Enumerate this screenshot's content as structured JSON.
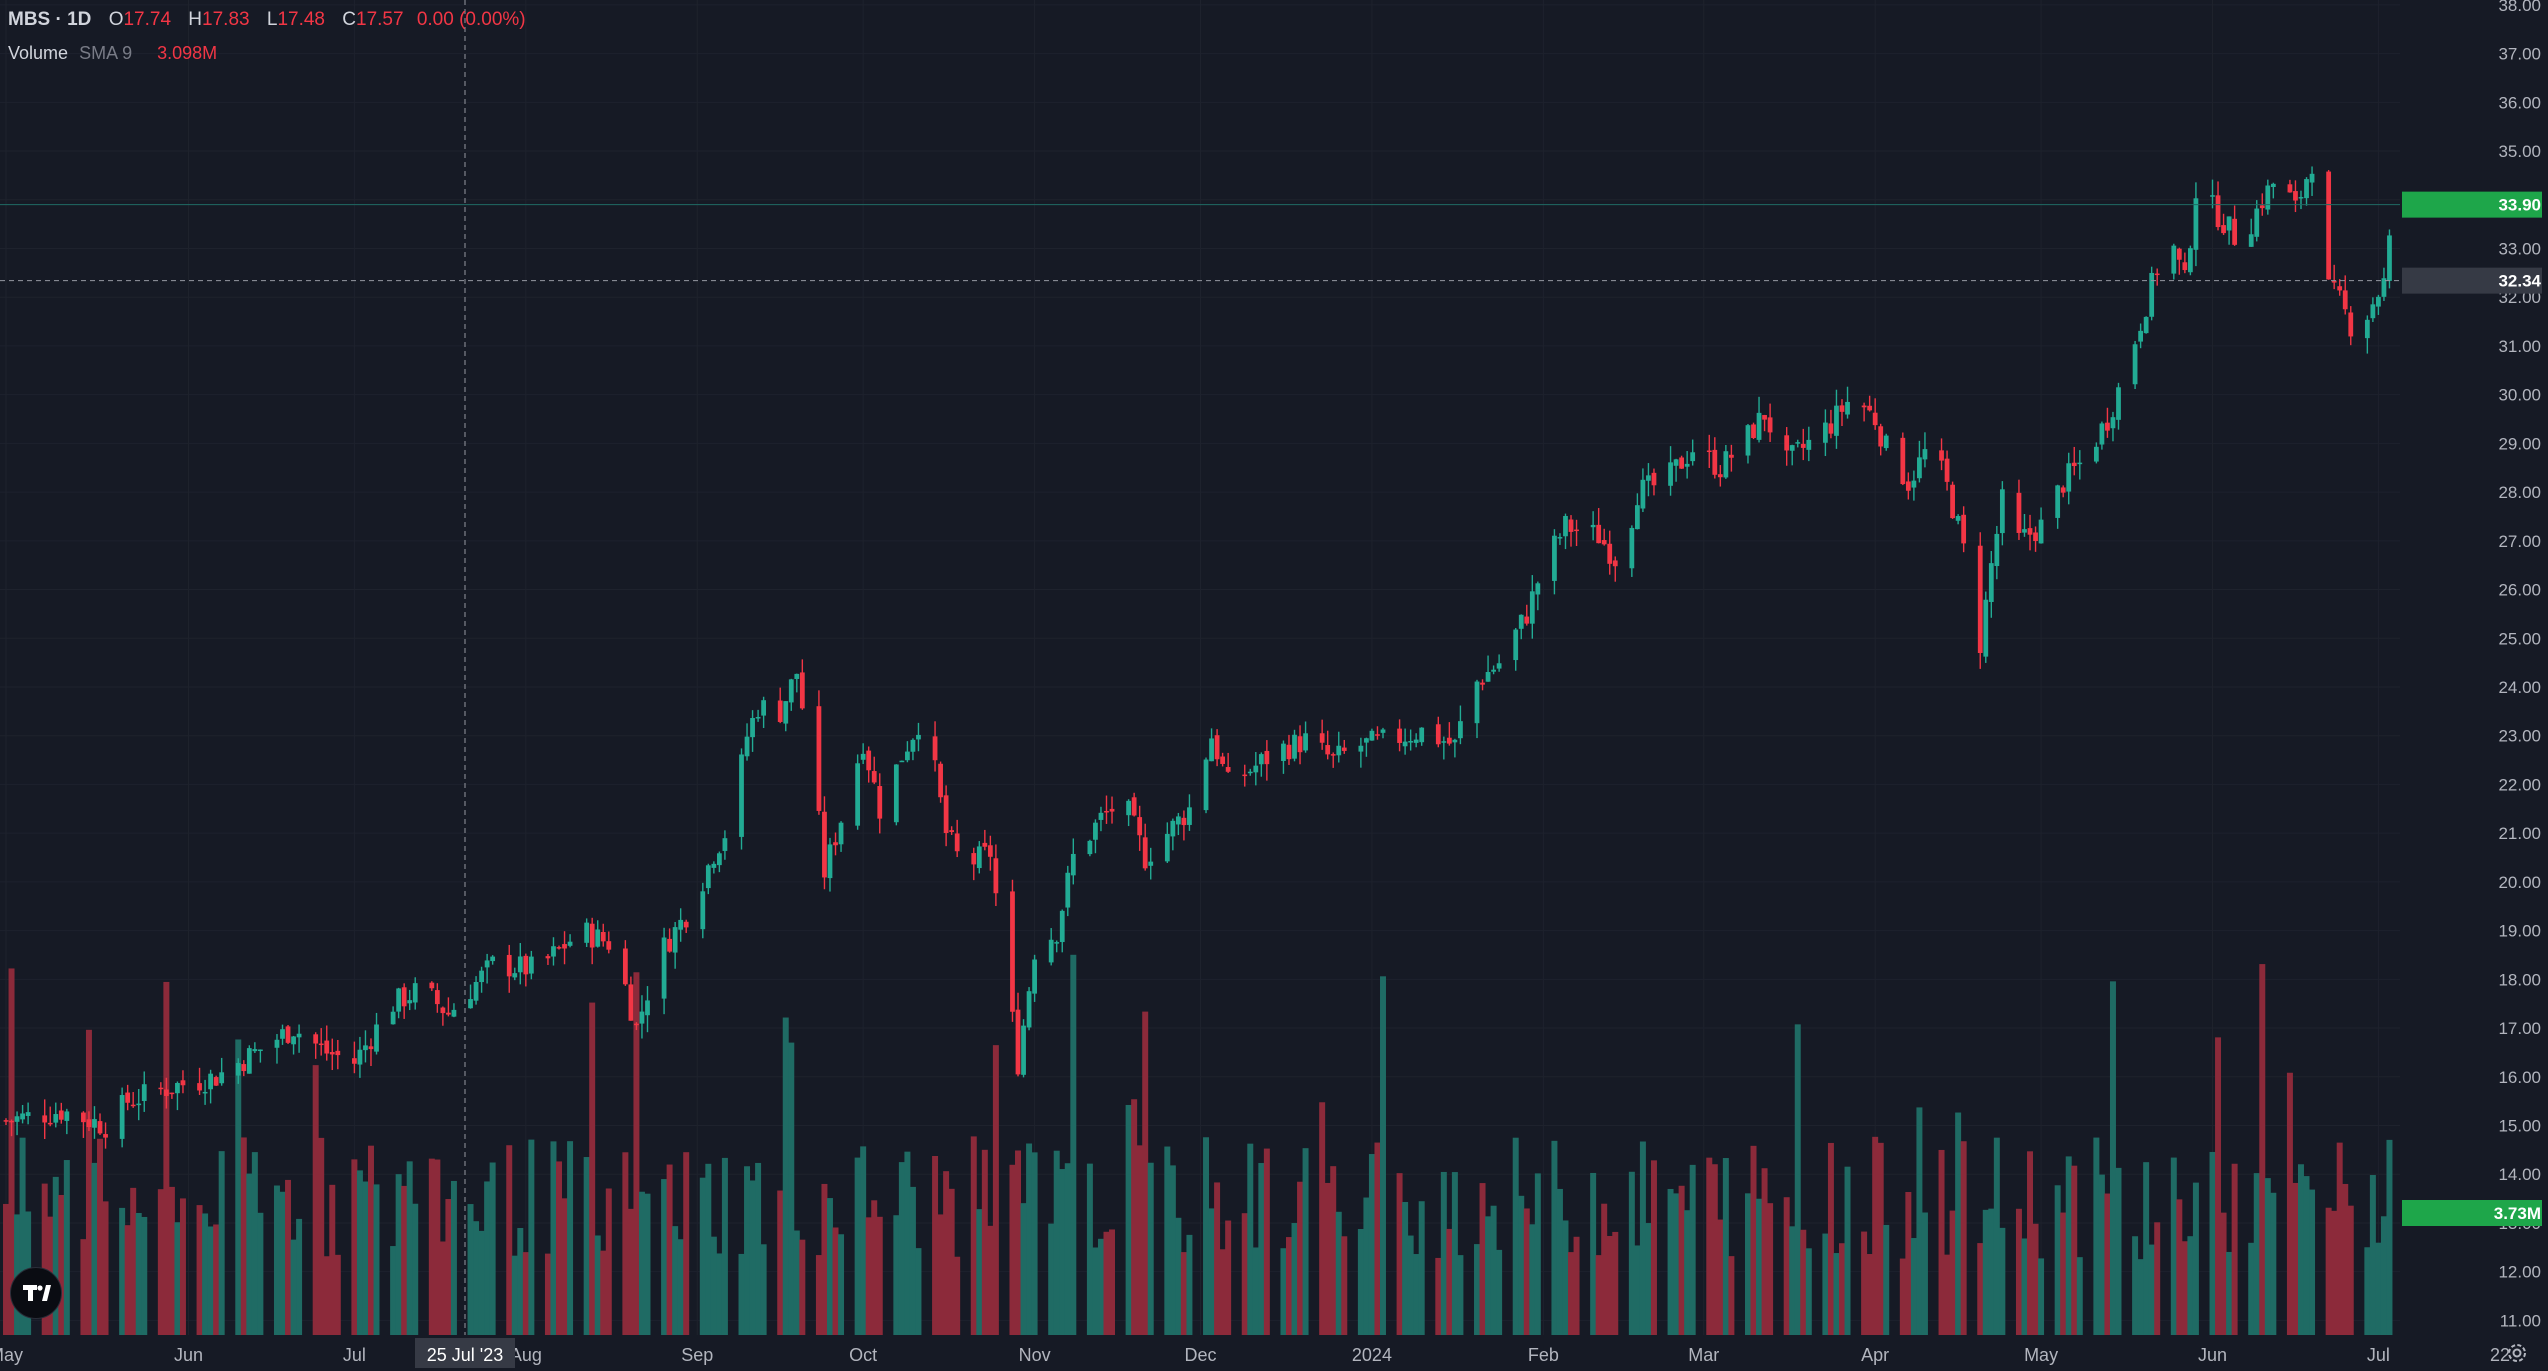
{
  "header": {
    "symbol": "MBS · 1D",
    "o_label": "O",
    "o_value": "17.74",
    "h_label": "H",
    "h_value": "17.83",
    "l_label": "L",
    "l_value": "17.48",
    "c_label": "C",
    "c_value": "17.57",
    "change": "0.00 (0.00%)"
  },
  "volume_legend": {
    "name": "Volume",
    "sma": "SMA 9",
    "value": "3.098M"
  },
  "colors": {
    "background": "#161a25",
    "up": "#22ab94",
    "down": "#f23645",
    "vol_up": "#1f6b64",
    "vol_down": "#8c2a3a",
    "grid": "#1e222d",
    "text": "#d1d4dc"
  },
  "chart_data": {
    "type": "candlestick",
    "symbol": "MBS",
    "interval": "1D",
    "price_axis": {
      "range": [
        10.7,
        38.1
      ],
      "ticks": [
        "11.00",
        "12.00",
        "13.00",
        "14.00",
        "15.00",
        "16.00",
        "17.00",
        "18.00",
        "19.00",
        "20.00",
        "21.00",
        "22.00",
        "23.00",
        "24.00",
        "25.00",
        "26.00",
        "27.00",
        "28.00",
        "29.00",
        "30.00",
        "31.00",
        "32.00",
        "33.00",
        "34.00",
        "35.00",
        "36.00",
        "37.00",
        "38.00"
      ]
    },
    "time_axis": {
      "labels": [
        {
          "text": "May",
          "day": 0
        },
        {
          "text": "Jun",
          "day": 33
        },
        {
          "text": "Jul",
          "day": 63
        },
        {
          "text": "Aug",
          "day": 94
        },
        {
          "text": "Sep",
          "day": 125
        },
        {
          "text": "Oct",
          "day": 155
        },
        {
          "text": "Nov",
          "day": 186
        },
        {
          "text": "Dec",
          "day": 216
        },
        {
          "text": "2024",
          "day": 247
        },
        {
          "text": "Feb",
          "day": 278
        },
        {
          "text": "Mar",
          "day": 307
        },
        {
          "text": "Apr",
          "day": 338
        },
        {
          "text": "May",
          "day": 368
        },
        {
          "text": "Jun",
          "day": 399
        },
        {
          "text": "Jul",
          "day": 429
        },
        {
          "text": "22",
          "day": 451
        }
      ],
      "first_candle_day": 0,
      "last_candle_day": 432
    },
    "anchors": [
      [
        0,
        15.1
      ],
      [
        10,
        15.3
      ],
      [
        18,
        15.0
      ],
      [
        22,
        15.5
      ],
      [
        30,
        15.8
      ],
      [
        38,
        16.0
      ],
      [
        45,
        16.5
      ],
      [
        52,
        17.0
      ],
      [
        58,
        16.5
      ],
      [
        63,
        16.3
      ],
      [
        70,
        17.5
      ],
      [
        75,
        17.8
      ],
      [
        80,
        17.3
      ],
      [
        88,
        18.3
      ],
      [
        96,
        18.2
      ],
      [
        104,
        19.0
      ],
      [
        110,
        18.7
      ],
      [
        114,
        17.0
      ],
      [
        118,
        18.5
      ],
      [
        124,
        19.5
      ],
      [
        128,
        20.6
      ],
      [
        131,
        21.2
      ],
      [
        134,
        23.0
      ],
      [
        136,
        23.6
      ],
      [
        140,
        23.5
      ],
      [
        143,
        24.3
      ],
      [
        146,
        22.2
      ],
      [
        148,
        20.2
      ],
      [
        151,
        21.3
      ],
      [
        155,
        22.9
      ],
      [
        158,
        21.5
      ],
      [
        162,
        22.6
      ],
      [
        166,
        23.5
      ],
      [
        170,
        21.0
      ],
      [
        173,
        20.3
      ],
      [
        178,
        20.6
      ],
      [
        181,
        18.0
      ],
      [
        183,
        16.3
      ],
      [
        186,
        18.6
      ],
      [
        190,
        19.0
      ],
      [
        193,
        20.5
      ],
      [
        198,
        21.3
      ],
      [
        202,
        21.7
      ],
      [
        206,
        20.5
      ],
      [
        210,
        21.0
      ],
      [
        214,
        21.5
      ],
      [
        218,
        23.0
      ],
      [
        221,
        22.0
      ],
      [
        225,
        22.3
      ],
      [
        230,
        22.7
      ],
      [
        235,
        22.9
      ],
      [
        240,
        22.5
      ],
      [
        245,
        22.8
      ],
      [
        250,
        22.9
      ],
      [
        256,
        23.1
      ],
      [
        262,
        22.8
      ],
      [
        265,
        24.0
      ],
      [
        270,
        24.5
      ],
      [
        275,
        25.5
      ],
      [
        278,
        26.5
      ],
      [
        282,
        27.3
      ],
      [
        288,
        27.1
      ],
      [
        292,
        26.5
      ],
      [
        295,
        28.0
      ],
      [
        300,
        28.2
      ],
      [
        305,
        28.9
      ],
      [
        310,
        28.5
      ],
      [
        314,
        29.0
      ],
      [
        318,
        29.6
      ],
      [
        322,
        28.6
      ],
      [
        326,
        29.0
      ],
      [
        330,
        29.4
      ],
      [
        334,
        30.0
      ],
      [
        338,
        29.5
      ],
      [
        340,
        28.9
      ],
      [
        344,
        28.2
      ],
      [
        348,
        29.0
      ],
      [
        351,
        28.1
      ],
      [
        353,
        27.3
      ],
      [
        355,
        26.3
      ],
      [
        357,
        24.9
      ],
      [
        359,
        26.5
      ],
      [
        361,
        27.8
      ],
      [
        364,
        27.0
      ],
      [
        368,
        27.3
      ],
      [
        372,
        28.2
      ],
      [
        376,
        28.7
      ],
      [
        380,
        29.5
      ],
      [
        383,
        30.4
      ],
      [
        386,
        31.5
      ],
      [
        389,
        32.6
      ],
      [
        392,
        33.0
      ],
      [
        394,
        32.3
      ],
      [
        396,
        34.2
      ],
      [
        400,
        33.7
      ],
      [
        404,
        33.1
      ],
      [
        408,
        34.0
      ],
      [
        411,
        34.5
      ],
      [
        414,
        33.8
      ],
      [
        417,
        34.8
      ],
      [
        419,
        32.3
      ],
      [
        422,
        31.9
      ],
      [
        425,
        31.2
      ],
      [
        428,
        31.9
      ],
      [
        430,
        32.3
      ],
      [
        432,
        33.9
      ]
    ],
    "volume_axis": {
      "unit": "M",
      "range": [
        0,
        7.5
      ]
    },
    "last_price": "33.90",
    "crosshair_price": "32.34",
    "crosshair_date": "25 Jul '23",
    "last_volume": "3.73M"
  }
}
